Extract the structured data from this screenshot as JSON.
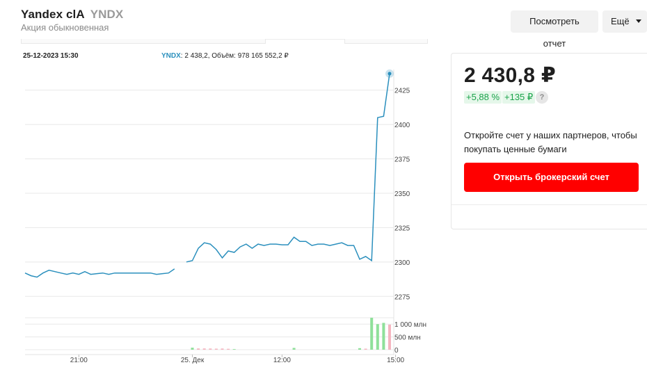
{
  "header": {
    "title": "Yandex clA",
    "ticker": "YNDX",
    "subtitle": "Акция обыкновенная",
    "report_button": "Посмотреть отчет",
    "more_button": "Ещё"
  },
  "chart_header": {
    "datetime": "25-12-2023 15:30",
    "ticker": "YNDX",
    "info": ": 2 438,2, Объём: 978 165 552,2 ₽"
  },
  "price_panel": {
    "price": "2 430,8 ₽",
    "change_pct": "+5,88 %",
    "change_abs": "+135 ₽",
    "help": "?",
    "partners_text": "Откройте счет у наших партнеров, чтобы покупать ценные бумаги",
    "open_button": "Открыть брокерский счет"
  },
  "colors": {
    "line": "#2a8fbd",
    "up_volume": "#8fe09a",
    "down_volume": "#f5b5c0",
    "accent_button": "#ff0000",
    "positive": "#1aa34a"
  },
  "chart_data": {
    "type": "line",
    "title": "",
    "xlabel": "",
    "ylabel": "",
    "ylim": [
      2263,
      2440
    ],
    "y_ticks": [
      2275,
      2300,
      2325,
      2350,
      2375,
      2400,
      2425
    ],
    "x_tick_labels": [
      "21:00",
      "25. Дек",
      "12:00",
      "15:00"
    ],
    "x_tick_positions": [
      9,
      28,
      43,
      62
    ],
    "series": [
      {
        "values": [
          2292,
          2290,
          2289,
          2292,
          2294,
          2293,
          2292,
          2291,
          2292,
          2291,
          2293,
          2291,
          2291.5,
          2292,
          2291,
          2292,
          2292,
          2292,
          2292,
          2292,
          2292,
          2292,
          2291,
          2291.5,
          2292,
          2295,
          null,
          2300,
          2301,
          2310,
          2314,
          2313,
          2309,
          2303,
          2308,
          2307,
          2311,
          2313,
          2310,
          2313,
          2312,
          2313,
          2313,
          2312.5,
          2312.5,
          2318,
          2315,
          2315,
          2312,
          2313,
          2313,
          2312,
          2313,
          2314,
          2312,
          2312,
          2302,
          2304,
          2301,
          2405,
          2406,
          2437
        ]
      }
    ],
    "volume": {
      "ylim": [
        0,
        1250
      ],
      "y_ticks": [
        "1 000 млн",
        "500 млн",
        "0"
      ],
      "values": [
        0,
        0,
        0,
        0,
        0,
        0,
        0,
        0,
        0,
        0,
        0,
        0,
        0,
        0,
        0,
        0,
        0,
        0,
        0,
        0,
        0,
        0,
        0,
        0,
        0,
        0,
        0,
        0,
        80,
        50,
        50,
        45,
        40,
        45,
        35,
        25,
        0,
        0,
        0,
        0,
        0,
        0,
        0,
        0,
        0,
        70,
        0,
        0,
        0,
        0,
        0,
        0,
        0,
        0,
        0,
        0,
        60,
        40,
        1250,
        1000,
        1050,
        980
      ],
      "direction": [
        "u",
        "u",
        "u",
        "u",
        "u",
        "u",
        "u",
        "u",
        "u",
        "u",
        "u",
        "u",
        "u",
        "u",
        "u",
        "u",
        "u",
        "u",
        "u",
        "u",
        "u",
        "u",
        "u",
        "u",
        "u",
        "u",
        "u",
        "u",
        "u",
        "d",
        "d",
        "d",
        "d",
        "d",
        "d",
        "u",
        "u",
        "u",
        "u",
        "u",
        "u",
        "u",
        "u",
        "u",
        "u",
        "u",
        "u",
        "u",
        "u",
        "u",
        "u",
        "u",
        "u",
        "u",
        "u",
        "u",
        "u",
        "d",
        "u",
        "u",
        "u",
        "d"
      ]
    },
    "legend": "none",
    "grid": true
  }
}
